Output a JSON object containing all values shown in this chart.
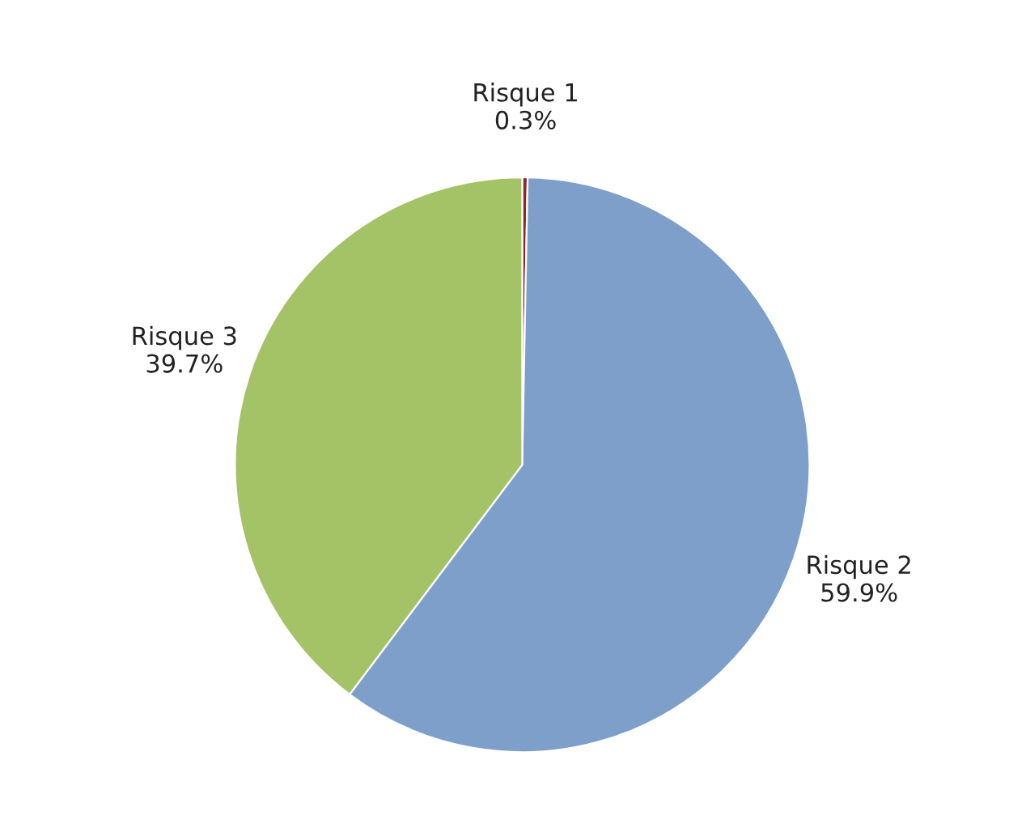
{
  "chart_data": {
    "type": "pie",
    "categories": [
      "Risque 1",
      "Risque 2",
      "Risque 3"
    ],
    "values": [
      0.3,
      59.9,
      39.7
    ],
    "value_labels": [
      "0.3%",
      "59.9%",
      "39.7%"
    ],
    "colors": [
      "#8b2a22",
      "#7f9fcb",
      "#a4c266"
    ]
  }
}
